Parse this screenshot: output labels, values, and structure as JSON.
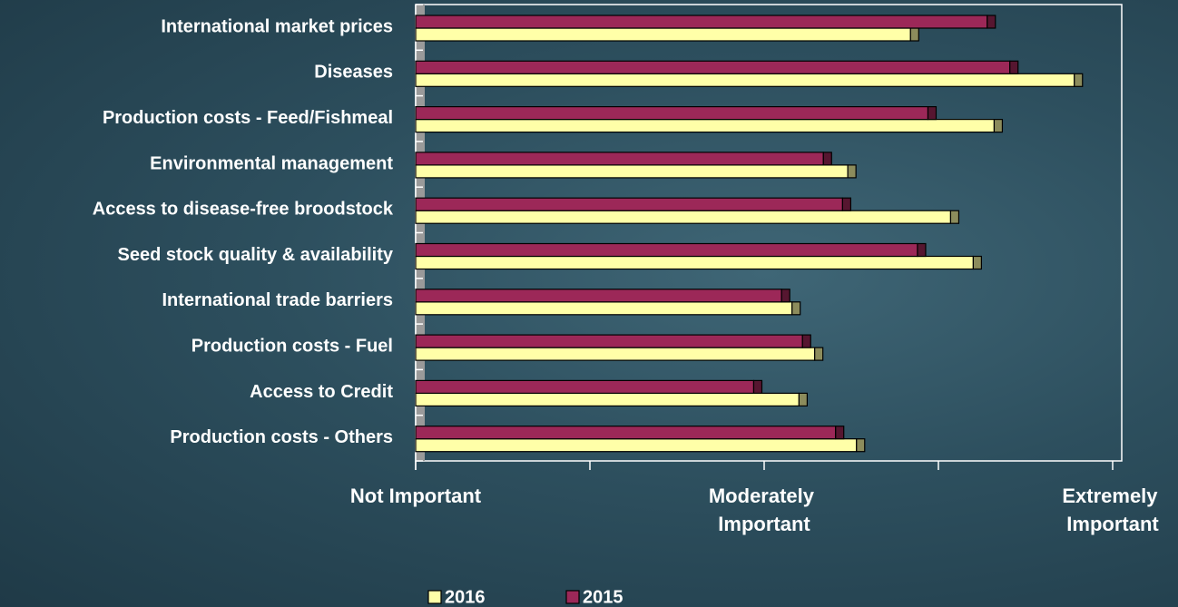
{
  "chart_data": {
    "type": "bar",
    "orientation": "horizontal",
    "categories": [
      "International market prices",
      "Diseases",
      "Production costs - Feed/Fishmeal",
      "Environmental management",
      "Access to disease-free broodstock",
      "Seed stock quality & availability",
      "International trade barriers",
      "Production costs - Fuel",
      "Access to Credit",
      "Production costs - Others"
    ],
    "series": [
      {
        "name": "2016",
        "color": "#ffffa8",
        "values": [
          3.84,
          4.78,
          4.32,
          3.48,
          4.07,
          4.2,
          3.16,
          3.29,
          3.2,
          3.53
        ]
      },
      {
        "name": "2015",
        "color": "#9c2858",
        "values": [
          4.28,
          4.41,
          3.94,
          3.34,
          3.45,
          3.88,
          3.1,
          3.22,
          2.94,
          3.41
        ]
      }
    ],
    "xlim": [
      1,
      5
    ],
    "xticks": [
      {
        "value": 1,
        "label": "Not Important"
      },
      2,
      {
        "value": 3,
        "label": "Moderately Important"
      },
      4,
      {
        "value": 5,
        "label": "Extremely Important"
      }
    ],
    "legend": "bottom"
  }
}
